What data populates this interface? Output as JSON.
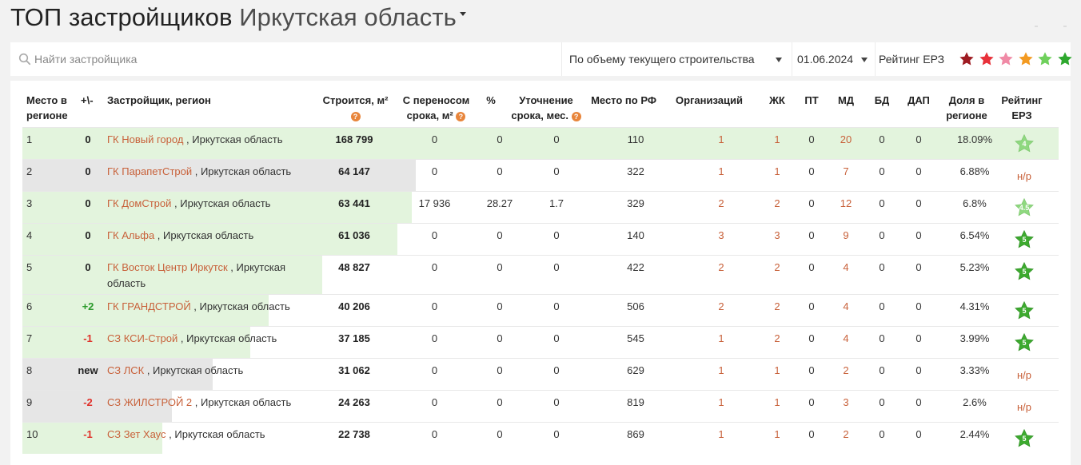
{
  "page": {
    "title_main": "ТОП застройщиков",
    "title_region": "Иркутская область"
  },
  "search": {
    "placeholder": "Найти застройщика",
    "icon": "search-icon"
  },
  "filters": {
    "sort_label": "По объему текущего строительства",
    "date_label": "01.06.2024",
    "rating_label": "Рейтинг ЕРЗ",
    "rating_star_colors": [
      "#9e1b22",
      "#e8313a",
      "#f08aa6",
      "#f39a21",
      "#6fd05c",
      "#2ea82e"
    ]
  },
  "columns": {
    "place": "Место в регионе",
    "delta": "+\\-",
    "developer": "Застройщик, регион",
    "building": "Строится, м²",
    "postponed": "С переносом срока, м²",
    "percent": "%",
    "clarify": "Уточнение срока, мес.",
    "rf_place": "Место по РФ",
    "orgs": "Организаций",
    "zhk": "ЖК",
    "pt": "ПТ",
    "md": "МД",
    "bd": "БД",
    "dap": "ДАП",
    "share": "Доля в регионе",
    "rating": "Рейтинг ЕРЗ"
  },
  "rows": [
    {
      "place": "1",
      "delta": "0",
      "name": "ГК Новый город",
      "region": ", Иркутская область",
      "building": "168 799",
      "postponed": "0",
      "percent": "0",
      "clarify": "0",
      "rf_place": "110",
      "orgs": "1",
      "zhk": "1",
      "pt": "0",
      "md": "20",
      "bd": "0",
      "dap": "0",
      "share": "18.09%",
      "rating": "4",
      "bar_fraction": 1.0
    },
    {
      "place": "2",
      "delta": "0",
      "name": "ГК ПарапетСтрой",
      "region": ", Иркутская область",
      "building": "64 147",
      "postponed": "0",
      "percent": "0",
      "clarify": "0",
      "rf_place": "322",
      "orgs": "1",
      "zhk": "1",
      "pt": "0",
      "md": "7",
      "bd": "0",
      "dap": "0",
      "share": "6.88%",
      "rating": "н/р",
      "bar_fraction": 0.38
    },
    {
      "place": "3",
      "delta": "0",
      "name": "ГК ДомСтрой",
      "region": ", Иркутская область",
      "building": "63 441",
      "postponed": "17 936",
      "percent": "28.27",
      "clarify": "1.7",
      "rf_place": "329",
      "orgs": "2",
      "zhk": "2",
      "pt": "0",
      "md": "12",
      "bd": "0",
      "dap": "0",
      "share": "6.8%",
      "rating": "4.5",
      "bar_fraction": 0.376
    },
    {
      "place": "4",
      "delta": "0",
      "name": "ГК Альфа",
      "region": ", Иркутская область",
      "building": "61 036",
      "postponed": "0",
      "percent": "0",
      "clarify": "0",
      "rf_place": "140",
      "orgs": "3",
      "zhk": "3",
      "pt": "0",
      "md": "9",
      "bd": "0",
      "dap": "0",
      "share": "6.54%",
      "rating": "5",
      "bar_fraction": 0.362
    },
    {
      "place": "5",
      "delta": "0",
      "name": "ГК Восток Центр Иркутск",
      "region": ", Иркутская область",
      "building": "48 827",
      "postponed": "0",
      "percent": "0",
      "clarify": "0",
      "rf_place": "422",
      "orgs": "2",
      "zhk": "2",
      "pt": "0",
      "md": "4",
      "bd": "0",
      "dap": "0",
      "share": "5.23%",
      "rating": "5",
      "bar_fraction": 0.289
    },
    {
      "place": "6",
      "delta": "+2",
      "name": "ГК ГРАНДСТРОЙ",
      "region": ", Иркутская область",
      "building": "40 206",
      "postponed": "0",
      "percent": "0",
      "clarify": "0",
      "rf_place": "506",
      "orgs": "2",
      "zhk": "2",
      "pt": "0",
      "md": "4",
      "bd": "0",
      "dap": "0",
      "share": "4.31%",
      "rating": "5",
      "bar_fraction": 0.238
    },
    {
      "place": "7",
      "delta": "-1",
      "name": "СЗ КСИ-Строй",
      "region": ", Иркутская область",
      "building": "37 185",
      "postponed": "0",
      "percent": "0",
      "clarify": "0",
      "rf_place": "545",
      "orgs": "1",
      "zhk": "2",
      "pt": "0",
      "md": "4",
      "bd": "0",
      "dap": "0",
      "share": "3.99%",
      "rating": "5",
      "bar_fraction": 0.22
    },
    {
      "place": "8",
      "delta": "new",
      "name": "СЗ ЛСК",
      "region": ", Иркутская область",
      "building": "31 062",
      "postponed": "0",
      "percent": "0",
      "clarify": "0",
      "rf_place": "629",
      "orgs": "1",
      "zhk": "1",
      "pt": "0",
      "md": "2",
      "bd": "0",
      "dap": "0",
      "share": "3.33%",
      "rating": "н/р",
      "bar_fraction": 0.184
    },
    {
      "place": "9",
      "delta": "-2",
      "name": "СЗ ЖИЛСТРОЙ 2",
      "region": ", Иркутская область",
      "building": "24 263",
      "postponed": "0",
      "percent": "0",
      "clarify": "0",
      "rf_place": "819",
      "orgs": "1",
      "zhk": "1",
      "pt": "0",
      "md": "3",
      "bd": "0",
      "dap": "0",
      "share": "2.6%",
      "rating": "н/р",
      "bar_fraction": 0.144
    },
    {
      "place": "10",
      "delta": "-1",
      "name": "СЗ Зет Хаус",
      "region": ", Иркутская область",
      "building": "22 738",
      "postponed": "0",
      "percent": "0",
      "clarify": "0",
      "rf_place": "869",
      "orgs": "1",
      "zhk": "1",
      "pt": "0",
      "md": "2",
      "bd": "0",
      "dap": "0",
      "share": "2.44%",
      "rating": "5",
      "bar_fraction": 0.135
    }
  ],
  "colors": {
    "star_green": "#3daa2f",
    "star_light_green": "#8fd880",
    "bar_up": "#e3f4dd",
    "bar_same": "#e6e6e6",
    "link": "#c8613a"
  }
}
